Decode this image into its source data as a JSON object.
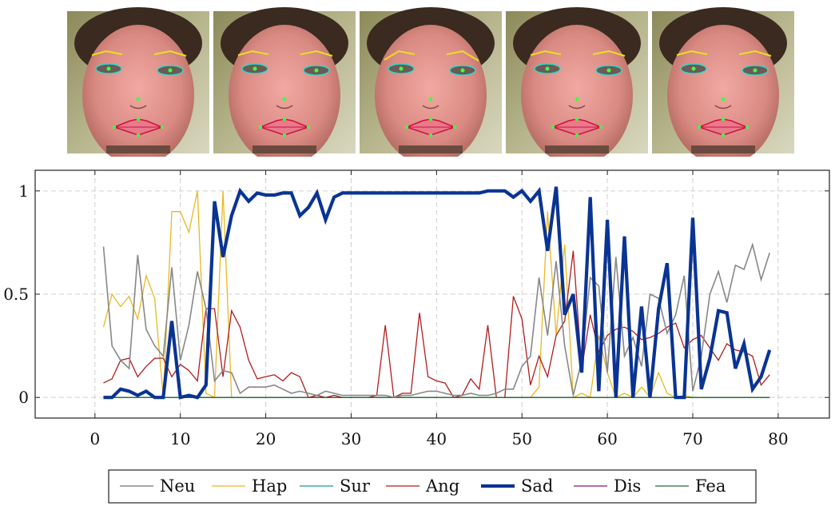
{
  "faces": {
    "count": 5,
    "description_label": "face frames with landmarks"
  },
  "chart_data": {
    "type": "line",
    "title": "",
    "xlabel": "",
    "ylabel": "",
    "xlim": [
      -7,
      86
    ],
    "ylim": [
      -0.1,
      1.1
    ],
    "xticks": [
      0,
      10,
      20,
      30,
      40,
      50,
      60,
      70,
      80
    ],
    "yticks": [
      0,
      0.5,
      1
    ],
    "ytick_labels": [
      "0",
      "0.5",
      "1"
    ],
    "grid": true,
    "legend_position": "bottom",
    "x": [
      1,
      2,
      3,
      4,
      5,
      6,
      7,
      8,
      9,
      10,
      11,
      12,
      13,
      14,
      15,
      16,
      17,
      18,
      19,
      20,
      21,
      22,
      23,
      24,
      25,
      26,
      27,
      28,
      29,
      30,
      31,
      32,
      33,
      34,
      35,
      36,
      37,
      38,
      39,
      40,
      41,
      42,
      43,
      44,
      45,
      46,
      47,
      48,
      49,
      50,
      51,
      52,
      53,
      54,
      55,
      56,
      57,
      58,
      59,
      60,
      61,
      62,
      63,
      64,
      65,
      66,
      67,
      68,
      69,
      70,
      71,
      72,
      73,
      74,
      75,
      76,
      77,
      78,
      79
    ],
    "series": [
      {
        "name": "Neu",
        "color": "#888888",
        "width": 1.6,
        "values": [
          0.73,
          0.25,
          0.18,
          0.14,
          0.69,
          0.33,
          0.25,
          0.2,
          0.63,
          0.18,
          0.35,
          0.61,
          0.43,
          0.08,
          0.13,
          0.12,
          0.02,
          0.05,
          0.05,
          0.05,
          0.06,
          0.04,
          0.02,
          0.03,
          0.02,
          0.01,
          0.03,
          0.02,
          0.01,
          0.01,
          0.01,
          0.01,
          0.01,
          0.01,
          0.0,
          0.01,
          0.01,
          0.02,
          0.03,
          0.03,
          0.02,
          0.01,
          0.01,
          0.02,
          0.01,
          0.01,
          0.02,
          0.04,
          0.04,
          0.15,
          0.2,
          0.58,
          0.3,
          0.66,
          0.25,
          0.01,
          0.18,
          0.58,
          0.54,
          0.12,
          0.68,
          0.2,
          0.29,
          0.15,
          0.5,
          0.48,
          0.31,
          0.4,
          0.59,
          0.03,
          0.2,
          0.5,
          0.61,
          0.46,
          0.64,
          0.62,
          0.74,
          0.57,
          0.7
        ]
      },
      {
        "name": "Hap",
        "color": "#e8b923",
        "width": 1.3,
        "values": [
          0.34,
          0.5,
          0.44,
          0.49,
          0.38,
          0.59,
          0.48,
          0.0,
          0.9,
          0.9,
          0.8,
          1.0,
          0.02,
          0.0,
          1.0,
          0.0,
          null,
          null,
          null,
          null,
          null,
          null,
          null,
          null,
          null,
          null,
          null,
          null,
          null,
          null,
          null,
          null,
          null,
          null,
          null,
          null,
          null,
          null,
          null,
          null,
          null,
          null,
          null,
          null,
          null,
          null,
          null,
          null,
          null,
          null,
          0.0,
          0.05,
          0.9,
          0.3,
          0.74,
          0.0,
          0.02,
          0.0,
          0.3,
          0.12,
          0.0,
          0.02,
          0.0,
          0.05,
          0.0,
          0.12,
          0.02,
          0.0,
          0.01,
          0.0,
          0.0,
          0.0,
          0.0,
          0.0,
          0.0,
          0.0,
          0.0,
          0.0,
          0.0
        ]
      },
      {
        "name": "Sur",
        "color": "#1a9a9a",
        "width": 1.3,
        "values": [
          0,
          0,
          0,
          0,
          0,
          0,
          0,
          0,
          0,
          0,
          0,
          0,
          0,
          0,
          0,
          0,
          0,
          0,
          0,
          0,
          0,
          0,
          0,
          0,
          0,
          0,
          0,
          0,
          0,
          0,
          0,
          0,
          0,
          0,
          0,
          0,
          0,
          0,
          0,
          0,
          0,
          0,
          0,
          0,
          0,
          0,
          0,
          0,
          0,
          0,
          0,
          0,
          0,
          0,
          0,
          0,
          0,
          0,
          0,
          0,
          0,
          0,
          0,
          0,
          0,
          0,
          0,
          0,
          0,
          0,
          0,
          0,
          0,
          0,
          0,
          0,
          0,
          0,
          0
        ]
      },
      {
        "name": "Ang",
        "color": "#b01c1c",
        "width": 1.3,
        "values": [
          0.07,
          0.09,
          0.18,
          0.19,
          0.1,
          0.15,
          0.19,
          0.19,
          0.1,
          0.16,
          0.13,
          0.08,
          0.43,
          0.43,
          0.1,
          0.42,
          0.34,
          0.18,
          0.09,
          0.1,
          0.11,
          0.08,
          0.12,
          0.1,
          0.0,
          0.01,
          0.0,
          0.01,
          0.0,
          0.0,
          0.0,
          0.0,
          0.01,
          0.35,
          0.0,
          0.02,
          0.02,
          0.41,
          0.1,
          0.08,
          0.07,
          0.0,
          0.01,
          0.09,
          0.04,
          0.35,
          0.0,
          0.0,
          0.49,
          0.38,
          0.06,
          0.2,
          0.1,
          0.3,
          0.37,
          0.71,
          0.14,
          0.4,
          0.22,
          0.3,
          0.33,
          0.34,
          0.32,
          0.28,
          0.29,
          0.31,
          0.34,
          0.36,
          0.24,
          0.28,
          0.3,
          0.24,
          0.18,
          0.26,
          0.23,
          0.22,
          0.2,
          0.06,
          0.11
        ]
      },
      {
        "name": "Sad",
        "color": "#0a3493",
        "width": 4.2,
        "values": [
          0.0,
          0.0,
          0.04,
          0.03,
          0.01,
          0.03,
          0.0,
          0.0,
          0.37,
          0.0,
          0.01,
          0.0,
          0.06,
          0.95,
          0.68,
          0.88,
          1.0,
          0.95,
          0.99,
          0.98,
          0.98,
          0.99,
          0.99,
          0.88,
          0.92,
          0.99,
          0.86,
          0.97,
          0.99,
          0.99,
          0.99,
          0.99,
          0.99,
          0.99,
          0.99,
          0.99,
          0.99,
          0.99,
          0.99,
          0.99,
          0.99,
          0.99,
          0.99,
          0.99,
          0.99,
          1.0,
          1.0,
          1.0,
          0.97,
          1.0,
          0.95,
          1.0,
          0.71,
          1.02,
          0.4,
          0.5,
          0.12,
          0.97,
          0.03,
          0.86,
          0.0,
          0.78,
          0.0,
          0.44,
          0.0,
          0.43,
          0.65,
          0.0,
          0.0,
          0.87,
          0.04,
          0.19,
          0.42,
          0.41,
          0.14,
          0.26,
          0.04,
          0.1,
          0.23
        ]
      },
      {
        "name": "Dis",
        "color": "#7a1a7a",
        "width": 1.3,
        "values": [
          0,
          0,
          0,
          0,
          0,
          0,
          0,
          0,
          0,
          0,
          0,
          0,
          0,
          0,
          0,
          0,
          0,
          0,
          0,
          0,
          0,
          0,
          0,
          0,
          0,
          0,
          0,
          0,
          0,
          0,
          0,
          0,
          0,
          0,
          0,
          0,
          0,
          0,
          0,
          0,
          0,
          0,
          0,
          0,
          0,
          0,
          0,
          0,
          0,
          0,
          0,
          0,
          0,
          0,
          0,
          0,
          0,
          0,
          0,
          0,
          0,
          0,
          0,
          0,
          0,
          0,
          0,
          0,
          0,
          0,
          0,
          0,
          0,
          0,
          0,
          0,
          0,
          0,
          0
        ]
      },
      {
        "name": "Fea",
        "color": "#2a6e3a",
        "width": 1.3,
        "values": [
          0,
          0,
          0,
          0,
          0,
          0,
          0,
          0,
          0,
          0,
          0,
          0,
          0,
          0,
          0,
          0,
          0,
          0,
          0,
          0,
          0,
          0,
          0,
          0,
          0,
          0,
          0,
          0,
          0,
          0,
          0,
          0,
          0,
          0,
          0,
          0,
          0,
          0,
          0,
          0,
          0,
          0,
          0,
          0,
          0,
          0,
          0,
          0,
          0,
          0,
          0,
          0,
          0,
          0,
          0,
          0,
          0,
          0,
          0,
          0,
          0,
          0,
          0,
          0,
          0,
          0,
          0,
          0,
          0,
          0,
          0,
          0,
          0,
          0,
          0,
          0,
          0,
          0,
          0
        ]
      }
    ]
  }
}
